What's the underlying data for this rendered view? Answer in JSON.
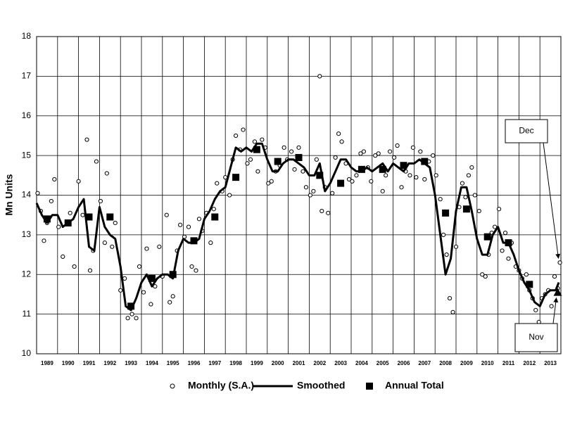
{
  "chart_data": {
    "type": "scatter",
    "y_label": "Mn Units",
    "xlim": [
      1989,
      2014
    ],
    "ylim": [
      10,
      18
    ],
    "yticks": [
      10,
      11,
      12,
      13,
      14,
      15,
      16,
      17,
      18
    ],
    "xticks": [
      {
        "value": 1989.5,
        "label": "1989"
      },
      {
        "value": 1990.5,
        "label": "1990"
      },
      {
        "value": 1991.5,
        "label": "1991"
      },
      {
        "value": 1992.5,
        "label": "1992"
      },
      {
        "value": 1993.5,
        "label": "1993"
      },
      {
        "value": 1994.5,
        "label": "1994"
      },
      {
        "value": 1995.5,
        "label": "1995"
      },
      {
        "value": 1996.5,
        "label": "1996"
      },
      {
        "value": 1997.5,
        "label": "1997"
      },
      {
        "value": 1998.5,
        "label": "1998"
      },
      {
        "value": 1999.5,
        "label": "1999"
      },
      {
        "value": 2000.5,
        "label": "2000"
      },
      {
        "value": 2001.5,
        "label": "2001"
      },
      {
        "value": 2002.5,
        "label": "2002"
      },
      {
        "value": 2003.5,
        "label": "2003"
      },
      {
        "value": 2004.5,
        "label": "2004"
      },
      {
        "value": 2005.5,
        "label": "2005"
      },
      {
        "value": 2006.5,
        "label": "2006"
      },
      {
        "value": 2007.5,
        "label": "2007"
      },
      {
        "value": 2008.5,
        "label": "2008"
      },
      {
        "value": 2009.5,
        "label": "2009"
      },
      {
        "value": 2010.5,
        "label": "2010"
      },
      {
        "value": 2011.5,
        "label": "2011"
      },
      {
        "value": 2012.5,
        "label": "2012"
      },
      {
        "value": 2013.5,
        "label": "2013"
      }
    ],
    "xgrid": [
      1990,
      1991,
      1992,
      1993,
      1994,
      1995,
      1996,
      1997,
      1998,
      1999,
      2000,
      2001,
      2002,
      2003,
      2004,
      2005,
      2006,
      2007,
      2008,
      2009,
      2010,
      2011,
      2012,
      2013
    ],
    "grid": true,
    "legend": "bottom",
    "series": [
      {
        "name": "Monthly (S.A.)",
        "mark": "circle",
        "color": "#000000",
        "x": [
          1989.05,
          1989.2,
          1989.35,
          1989.5,
          1989.7,
          1989.85,
          1990.05,
          1990.25,
          1990.45,
          1990.6,
          1990.8,
          1991.0,
          1991.2,
          1991.4,
          1991.55,
          1991.7,
          1991.85,
          1992.05,
          1992.25,
          1992.35,
          1992.6,
          1992.75,
          1993.0,
          1993.2,
          1993.35,
          1993.55,
          1993.75,
          1993.9,
          1994.1,
          1994.25,
          1994.45,
          1994.65,
          1994.85,
          1995.0,
          1995.2,
          1995.35,
          1995.5,
          1995.7,
          1995.85,
          1996.05,
          1996.25,
          1996.4,
          1996.6,
          1996.75,
          1996.9,
          1997.1,
          1997.3,
          1997.45,
          1997.6,
          1997.85,
          1998.0,
          1998.2,
          1998.35,
          1998.5,
          1998.7,
          1998.85,
          1999.05,
          1999.2,
          1999.4,
          1999.55,
          1999.75,
          1999.9,
          2000.05,
          2000.2,
          2000.4,
          2000.6,
          2000.8,
          2000.95,
          2001.15,
          2001.3,
          2001.5,
          2001.7,
          2001.85,
          2002.05,
          2002.2,
          2002.35,
          2002.5,
          2002.6,
          2002.75,
          2002.9,
          2003.1,
          2003.25,
          2003.4,
          2003.55,
          2003.75,
          2003.9,
          2004.05,
          2004.25,
          2004.45,
          2004.6,
          2004.8,
          2004.95,
          2005.15,
          2005.3,
          2005.5,
          2005.65,
          2005.85,
          2006.05,
          2006.2,
          2006.4,
          2006.6,
          2006.8,
          2006.95,
          2007.1,
          2007.3,
          2007.5,
          2007.7,
          2007.9,
          2008.05,
          2008.25,
          2008.4,
          2008.55,
          2008.7,
          2008.85,
          2009.0,
          2009.15,
          2009.3,
          2009.45,
          2009.6,
          2009.75,
          2009.9,
          2010.1,
          2010.25,
          2010.4,
          2010.55,
          2010.7,
          2010.85,
          2011.05,
          2011.2,
          2011.35,
          2011.5,
          2011.65,
          2011.85,
          2012.0,
          2012.15,
          2012.35,
          2012.5,
          2012.65,
          2012.8,
          2012.95,
          2013.1,
          2013.25,
          2013.4,
          2013.55,
          2013.7,
          2013.85,
          2013.95
        ],
        "values": [
          14.05,
          13.6,
          12.85,
          13.3,
          13.85,
          14.4,
          13.2,
          12.45,
          13.3,
          13.55,
          12.2,
          14.35,
          13.5,
          15.4,
          12.1,
          12.6,
          14.85,
          13.85,
          12.8,
          14.55,
          12.7,
          13.3,
          11.6,
          11.9,
          10.9,
          11.0,
          10.9,
          12.2,
          11.55,
          12.65,
          11.25,
          11.7,
          12.7,
          11.95,
          13.5,
          11.3,
          11.45,
          12.6,
          13.25,
          12.95,
          13.2,
          12.2,
          12.1,
          13.4,
          13.1,
          13.55,
          12.8,
          13.65,
          14.3,
          14.1,
          14.45,
          14.0,
          14.9,
          15.5,
          15.15,
          15.65,
          14.8,
          14.9,
          15.35,
          14.6,
          15.4,
          15.2,
          14.3,
          14.35,
          14.6,
          14.75,
          15.2,
          14.9,
          15.1,
          14.65,
          15.2,
          14.6,
          14.2,
          14.0,
          14.1,
          14.9,
          17.0,
          13.6,
          14.2,
          13.55,
          14.05,
          14.95,
          15.55,
          15.35,
          14.8,
          14.4,
          14.35,
          14.5,
          15.05,
          15.1,
          14.7,
          14.35,
          15.0,
          15.05,
          14.1,
          14.5,
          15.1,
          14.95,
          15.25,
          14.2,
          14.6,
          14.5,
          15.2,
          14.45,
          15.1,
          14.4,
          14.85,
          15.0,
          14.5,
          13.9,
          13.0,
          12.5,
          11.4,
          11.05,
          12.7,
          13.7,
          14.3,
          13.95,
          14.5,
          14.7,
          14.0,
          13.6,
          12.0,
          11.95,
          12.5,
          13.05,
          13.2,
          13.65,
          12.6,
          13.05,
          12.4,
          12.8,
          12.2,
          12.1,
          11.9,
          12.0,
          11.6,
          11.4,
          11.1,
          10.8,
          11.4,
          11.5,
          11.6,
          11.2,
          11.95,
          11.65,
          12.3
        ]
      },
      {
        "name": "Smoothed",
        "mark": "line",
        "color": "#000000",
        "x": [
          1989.0,
          1989.25,
          1989.5,
          1989.75,
          1990.0,
          1990.25,
          1990.5,
          1990.75,
          1991.0,
          1991.25,
          1991.5,
          1991.75,
          1992.0,
          1992.25,
          1992.5,
          1992.75,
          1993.0,
          1993.25,
          1993.5,
          1993.75,
          1994.0,
          1994.25,
          1994.5,
          1994.75,
          1995.0,
          1995.25,
          1995.5,
          1995.75,
          1996.0,
          1996.25,
          1996.5,
          1996.75,
          1997.0,
          1997.25,
          1997.5,
          1997.75,
          1998.0,
          1998.25,
          1998.5,
          1998.75,
          1999.0,
          1999.25,
          1999.5,
          1999.75,
          2000.0,
          2000.25,
          2000.5,
          2000.75,
          2001.0,
          2001.25,
          2001.5,
          2001.75,
          2002.0,
          2002.25,
          2002.5,
          2002.75,
          2003.0,
          2003.25,
          2003.5,
          2003.75,
          2004.0,
          2004.25,
          2004.5,
          2004.75,
          2005.0,
          2005.25,
          2005.5,
          2005.75,
          2006.0,
          2006.25,
          2006.5,
          2006.75,
          2007.0,
          2007.25,
          2007.5,
          2007.75,
          2008.0,
          2008.25,
          2008.5,
          2008.75,
          2009.0,
          2009.25,
          2009.5,
          2009.75,
          2010.0,
          2010.25,
          2010.5,
          2010.75,
          2011.0,
          2011.25,
          2011.5,
          2011.75,
          2012.0,
          2012.25,
          2012.5,
          2012.75,
          2013.0,
          2013.25,
          2013.5,
          2013.75,
          2013.9
        ],
        "values": [
          13.8,
          13.5,
          13.3,
          13.5,
          13.5,
          13.2,
          13.3,
          13.4,
          13.7,
          13.9,
          12.7,
          12.6,
          13.7,
          13.2,
          13.0,
          12.9,
          12.2,
          11.2,
          11.1,
          11.4,
          11.8,
          12.0,
          11.7,
          11.9,
          12.0,
          12.0,
          11.9,
          12.6,
          12.9,
          12.8,
          12.8,
          12.9,
          13.4,
          13.6,
          13.9,
          14.1,
          14.2,
          14.7,
          15.2,
          15.1,
          15.2,
          15.1,
          15.3,
          15.3,
          14.9,
          14.6,
          14.6,
          14.8,
          14.9,
          14.9,
          14.8,
          14.7,
          14.5,
          14.5,
          14.8,
          14.1,
          14.3,
          14.6,
          14.9,
          14.9,
          14.7,
          14.6,
          14.6,
          14.7,
          14.6,
          14.7,
          14.8,
          14.6,
          14.8,
          14.7,
          14.6,
          14.8,
          14.8,
          14.9,
          14.8,
          14.7,
          14.0,
          13.0,
          12.0,
          12.4,
          13.6,
          14.2,
          14.2,
          13.6,
          12.9,
          12.5,
          12.5,
          13.0,
          13.2,
          12.8,
          12.8,
          12.5,
          12.1,
          11.8,
          11.6,
          11.3,
          11.2,
          11.5,
          11.6,
          11.6,
          11.8
        ]
      },
      {
        "name": "Annual Total",
        "mark": "square",
        "last_mark": "triangle",
        "color": "#000000",
        "x": [
          1989.5,
          1990.5,
          1991.5,
          1992.5,
          1993.5,
          1994.5,
          1995.5,
          1996.5,
          1997.5,
          1998.5,
          1999.5,
          2000.5,
          2001.5,
          2002.5,
          2003.5,
          2004.5,
          2005.5,
          2006.5,
          2007.5,
          2008.5,
          2009.5,
          2010.5,
          2011.5,
          2012.5,
          2013.85
        ],
        "values": [
          13.4,
          13.3,
          13.45,
          13.45,
          11.2,
          11.9,
          12.0,
          12.85,
          13.45,
          14.45,
          15.15,
          14.85,
          14.95,
          14.5,
          14.3,
          14.65,
          14.65,
          14.75,
          14.85,
          13.55,
          13.65,
          12.95,
          12.8,
          11.75,
          11.55
        ]
      }
    ],
    "annotations": [
      {
        "text": "Dec",
        "x": 2013.95,
        "y": 12.3
      },
      {
        "text": "Nov",
        "x": 2013.85,
        "y": 11.55
      }
    ]
  }
}
